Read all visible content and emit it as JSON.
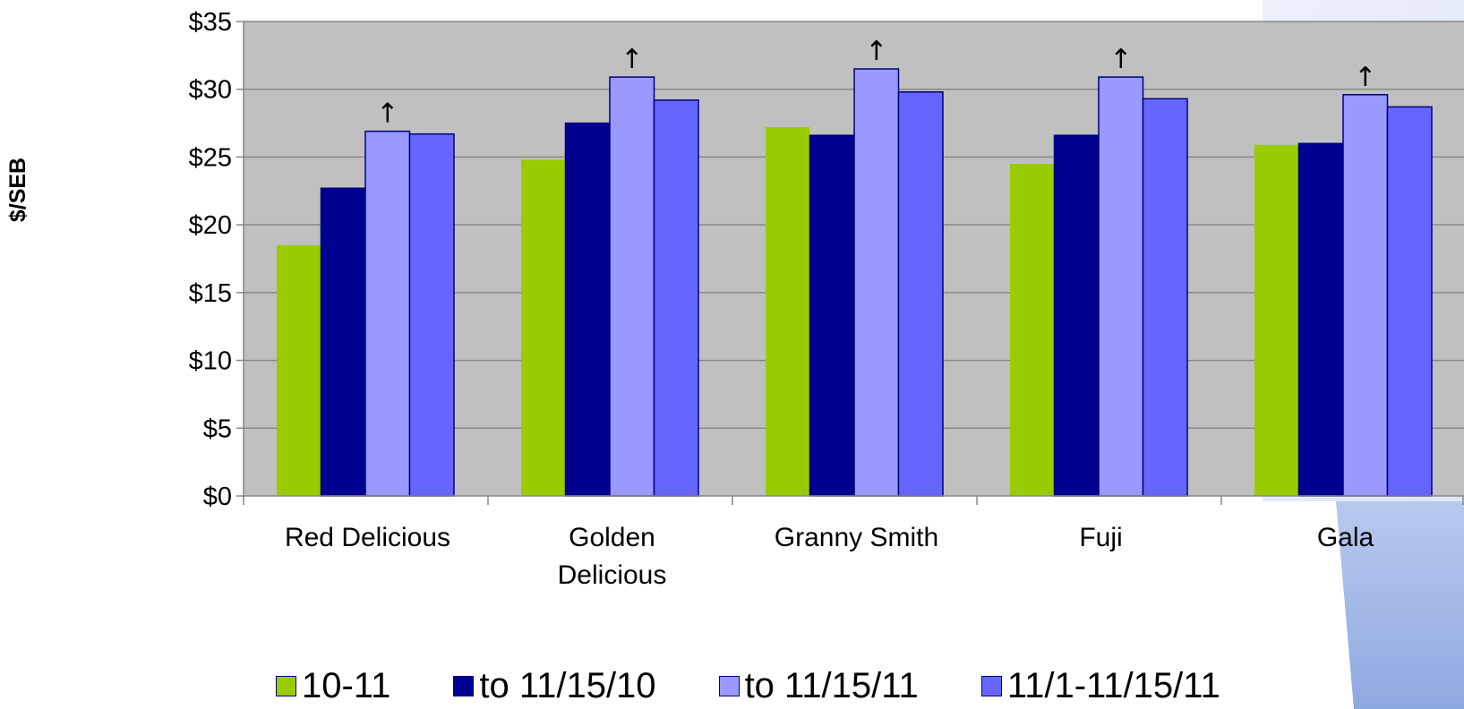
{
  "chart_data": {
    "type": "bar",
    "title": "",
    "xlabel": "",
    "ylabel": "$/SEB",
    "ylim": [
      0,
      35
    ],
    "yticks": [
      "$0",
      "$5",
      "$10",
      "$15",
      "$20",
      "$25",
      "$30",
      "$35"
    ],
    "categories": [
      [
        "Red Delicious"
      ],
      [
        "Golden",
        "Delicious"
      ],
      [
        "Granny Smith"
      ],
      [
        "Fuji"
      ],
      [
        "Gala"
      ]
    ],
    "category_names": [
      "Red Delicious",
      "Golden Delicious",
      "Granny Smith",
      "Fuji",
      "Gala"
    ],
    "series": [
      {
        "name": "10-11",
        "values": [
          18.5,
          24.8,
          27.2,
          24.5,
          25.9
        ],
        "color": "#99cc00"
      },
      {
        "name": "to 11/15/10",
        "values": [
          22.7,
          27.5,
          26.6,
          26.6,
          26.0
        ],
        "color": "#000090"
      },
      {
        "name": "to 11/15/11",
        "values": [
          26.9,
          30.9,
          31.5,
          30.9,
          29.6
        ],
        "color": "#9999ff"
      },
      {
        "name": "11/1-11/15/11",
        "values": [
          26.7,
          29.2,
          29.8,
          29.3,
          28.7
        ],
        "color": "#6666ff"
      }
    ],
    "annotations": [
      {
        "symbol": "↑",
        "series": "to 11/15/11",
        "category": "Red Delicious"
      },
      {
        "symbol": "↑",
        "series": "to 11/15/11",
        "category": "Golden Delicious"
      },
      {
        "symbol": "↑",
        "series": "to 11/15/11",
        "category": "Granny Smith"
      },
      {
        "symbol": "↑",
        "series": "to 11/15/11",
        "category": "Fuji"
      },
      {
        "symbol": "↑",
        "series": "to 11/15/11",
        "category": "Gala"
      }
    ],
    "plot_background": "#c0c0c0",
    "grid": true,
    "legend_position": "bottom"
  },
  "theme": {
    "gridline_color": "#888888",
    "bar_outline": "#000080",
    "decor_color": "#8faadc"
  }
}
